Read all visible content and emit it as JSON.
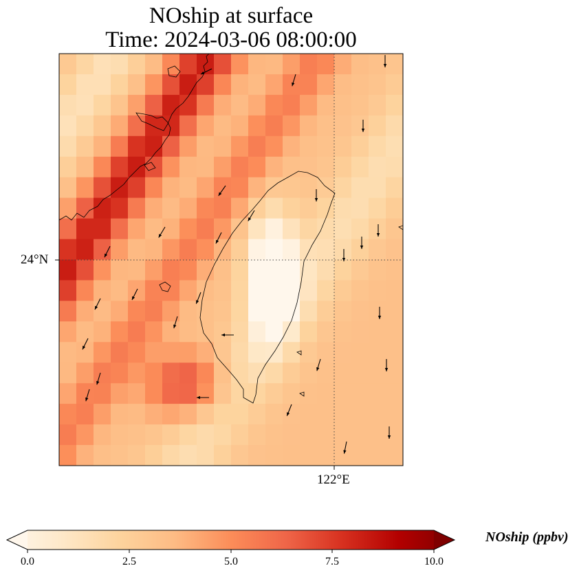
{
  "title": {
    "line1": "NOship at surface",
    "line2": "Time: 2024-03-06 08:00:00"
  },
  "map": {
    "variable": "NOship",
    "level": "surface",
    "lat_label": "24°N",
    "lon_label": "122°E",
    "gridline_style": "dotted",
    "features": [
      "coastline",
      "wind-vectors",
      "filled-concentration-field"
    ]
  },
  "colorbar": {
    "label": "NOship (ppbv)",
    "ticks": [
      "0.0",
      "2.5",
      "5.0",
      "7.5",
      "10.0"
    ],
    "min": 0,
    "max": 10,
    "extend": "both",
    "colormap": "OrRd",
    "colors": [
      "#fff7ec",
      "#fee8c8",
      "#fdd49e",
      "#fdbb84",
      "#fc8d59",
      "#ef6548",
      "#d7301f",
      "#b30000",
      "#7f0000"
    ]
  }
}
